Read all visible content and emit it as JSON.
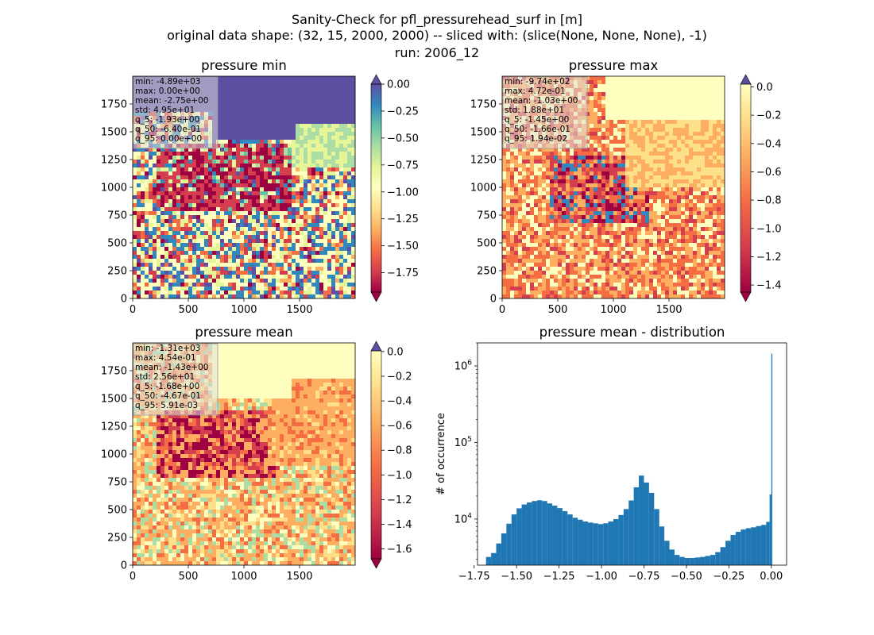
{
  "figure": {
    "title_lines": [
      "Sanity-Check for pfl_pressurehead_surf in [m]",
      "original data shape: (32, 15, 2000, 2000) -- sliced with: (slice(None, None, None), -1)",
      "run: 2006_12"
    ]
  },
  "chart_data": [
    {
      "type": "heatmap",
      "title": "pressure min",
      "colormap": "Spectral",
      "x_ticks": [
        "0",
        "500",
        "1000",
        "1500"
      ],
      "y_ticks": [
        "0",
        "250",
        "500",
        "750",
        "1000",
        "1250",
        "1500",
        "1750"
      ],
      "xlim": [
        0,
        2000
      ],
      "ylim": [
        0,
        2000
      ],
      "colorbar": {
        "vmin": -1.93,
        "vmax": 0.0,
        "extend": "both",
        "ticks": [
          0.0,
          -0.25,
          -0.5,
          -0.75,
          -1.0,
          -1.25,
          -1.5,
          -1.75
        ],
        "tick_labels": [
          "0.00",
          "−0.25",
          "−0.50",
          "−0.75",
          "−1.00",
          "−1.25",
          "−1.50",
          "−1.75"
        ],
        "extend_top_color": "#5e4fa2",
        "extend_bottom_color": "#9e0142"
      },
      "stats": [
        "min: -4.89e+03",
        "max: 0.00e+00",
        "mean: -2.75e+00",
        "std: 4.95e+01",
        "q_5: -1.93e+00",
        "q_50: -6.40e-01",
        "q_95: 0.00e+00"
      ]
    },
    {
      "type": "heatmap",
      "title": "pressure max",
      "colormap": "Spectral",
      "x_ticks": [
        "0",
        "500",
        "1000",
        "1500"
      ],
      "y_ticks": [
        "0",
        "250",
        "500",
        "750",
        "1000",
        "1250",
        "1500",
        "1750"
      ],
      "xlim": [
        0,
        2000
      ],
      "ylim": [
        0,
        2000
      ],
      "colorbar": {
        "vmin": -1.45,
        "vmax": 0.0194,
        "extend": "both",
        "ticks": [
          0.0,
          -0.2,
          -0.4,
          -0.6,
          -0.8,
          -1.0,
          -1.2,
          -1.4
        ],
        "tick_labels": [
          "0.0",
          "−0.2",
          "−0.4",
          "−0.6",
          "−0.8",
          "−1.0",
          "−1.2",
          "−1.4"
        ],
        "extend_top_color": "#5e4fa2",
        "extend_bottom_color": "#9e0142"
      },
      "stats": [
        "min: -9.74e+02",
        "max: 4.72e-01",
        "mean: -1.03e+00",
        "std: 1.88e+01",
        "q_5: -1.45e+00",
        "q_50: -1.66e-01",
        "q_95: 1.94e-02"
      ]
    },
    {
      "type": "heatmap",
      "title": "pressure mean",
      "colormap": "Spectral",
      "x_ticks": [
        "0",
        "500",
        "1000",
        "1500"
      ],
      "y_ticks": [
        "0",
        "250",
        "500",
        "750",
        "1000",
        "1250",
        "1500",
        "1750"
      ],
      "xlim": [
        0,
        2000
      ],
      "ylim": [
        0,
        2000
      ],
      "colorbar": {
        "vmin": -1.68,
        "vmax": 0.00591,
        "extend": "both",
        "ticks": [
          0.0,
          -0.2,
          -0.4,
          -0.6,
          -0.8,
          -1.0,
          -1.2,
          -1.4,
          -1.6
        ],
        "tick_labels": [
          "0.0",
          "−0.2",
          "−0.4",
          "−0.6",
          "−0.8",
          "−1.0",
          "−1.2",
          "−1.4",
          "−1.6"
        ],
        "extend_top_color": "#5e4fa2",
        "extend_bottom_color": "#9e0142"
      },
      "stats": [
        "min: -1.31e+03",
        "max: 4.54e-01",
        "mean: -1.43e+00",
        "std: 2.56e+01",
        "q_5: -1.68e+00",
        "q_50: -4.67e-01",
        "q_95: 5.91e-03"
      ]
    },
    {
      "type": "bar",
      "subtype": "histogram",
      "title": "pressure mean - distribution",
      "ylabel": "# of occurrence",
      "y_scale": "log",
      "xlim": [
        -1.73,
        0.09
      ],
      "ylim": [
        2500,
        2000000
      ],
      "x_ticks": [
        -1.75,
        -1.5,
        -1.25,
        -1.0,
        -0.75,
        -0.5,
        -0.25,
        0.0
      ],
      "x_tick_labels": [
        "−1.75",
        "−1.50",
        "−1.25",
        "−1.00",
        "−0.75",
        "−0.50",
        "−0.25",
        "0.00"
      ],
      "y_ticks": [
        10000,
        100000,
        1000000
      ],
      "y_tick_labels": [
        "10^4",
        "10^5",
        "10^6"
      ],
      "bar_color": "#1f77b4",
      "x": [
        -1.68,
        -1.65,
        -1.62,
        -1.59,
        -1.56,
        -1.53,
        -1.5,
        -1.47,
        -1.44,
        -1.41,
        -1.38,
        -1.35,
        -1.32,
        -1.29,
        -1.26,
        -1.23,
        -1.2,
        -1.17,
        -1.14,
        -1.11,
        -1.08,
        -1.05,
        -1.02,
        -0.99,
        -0.96,
        -0.93,
        -0.9,
        -0.87,
        -0.84,
        -0.81,
        -0.78,
        -0.75,
        -0.72,
        -0.69,
        -0.66,
        -0.63,
        -0.6,
        -0.57,
        -0.54,
        -0.51,
        -0.48,
        -0.45,
        -0.42,
        -0.39,
        -0.36,
        -0.33,
        -0.3,
        -0.27,
        -0.24,
        -0.21,
        -0.18,
        -0.15,
        -0.12,
        -0.09,
        -0.06,
        -0.03,
        -0.01,
        0.0
      ],
      "values": [
        3200,
        3600,
        4800,
        6500,
        8700,
        11500,
        13800,
        15500,
        16500,
        17200,
        17600,
        17200,
        16000,
        15000,
        13900,
        12700,
        11500,
        10400,
        9800,
        9300,
        9000,
        8800,
        8600,
        8800,
        9300,
        10000,
        11300,
        13500,
        17500,
        26000,
        37000,
        30000,
        22000,
        13500,
        8000,
        5200,
        4000,
        3400,
        3200,
        3100,
        3100,
        3150,
        3200,
        3300,
        3400,
        3700,
        4300,
        5200,
        6200,
        6800,
        7300,
        7600,
        7800,
        8100,
        8400,
        9200,
        21000,
        1450000
      ]
    }
  ]
}
